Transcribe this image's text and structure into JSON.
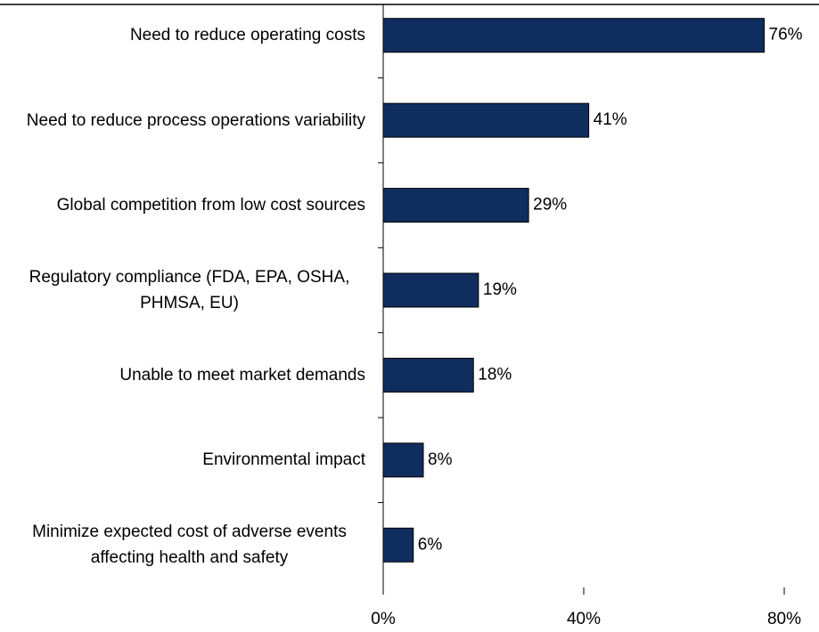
{
  "chart_data": {
    "type": "hbar",
    "categories": [
      "Need to reduce operating costs",
      "Need to reduce process operations variability",
      "Global competition from low cost sources",
      "Regulatory compliance (FDA, EPA, OSHA, PHMSA, EU)",
      "Unable to meet market demands",
      "Environmental impact",
      "Minimize expected cost of adverse events affecting health and safety"
    ],
    "values": [
      76,
      41,
      29,
      19,
      18,
      8,
      6
    ],
    "value_labels": [
      "76%",
      "41%",
      "29%",
      "19%",
      "18%",
      "8%",
      "6%"
    ],
    "color": "#0f2d5f",
    "xlim": [
      0,
      80
    ],
    "xticks": [
      {
        "value": 0,
        "label": "0%"
      },
      {
        "value": 40,
        "label": "40%"
      },
      {
        "value": 80,
        "label": "80%"
      }
    ]
  }
}
